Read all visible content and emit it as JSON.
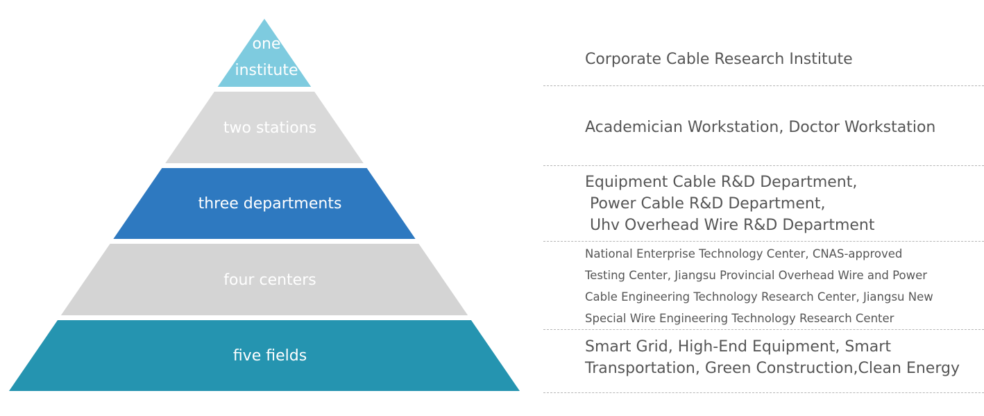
{
  "tiers": [
    {
      "label_lines": [
        "one",
        "institute"
      ],
      "color": "#7ecbdf",
      "description_lines": [
        "Corporate Cable Research Institute"
      ]
    },
    {
      "label_lines": [
        "two stations"
      ],
      "color": "#d9d9d9",
      "description_lines": [
        "Academician Workstation, Doctor Workstation"
      ]
    },
    {
      "label_lines": [
        "three departments"
      ],
      "color": "#2e79c0",
      "description_lines": [
        "Equipment Cable R&D Department,",
        " Power Cable R&D Department,",
        " Uhv Overhead Wire R&D Department"
      ]
    },
    {
      "label_lines": [
        "four centers"
      ],
      "color": "#d4d4d4",
      "description_lines": [
        "National Enterprise Technology Center, CNAS-approved",
        "Testing Center, Jiangsu Provincial Overhead Wire and Power",
        "Cable Engineering Technology Research Center, Jiangsu New",
        "Special Wire Engineering Technology Research Center"
      ]
    },
    {
      "label_lines": [
        "five fields"
      ],
      "color": "#2594b0",
      "description_lines": [
        "Smart Grid, High-End Equipment, Smart",
        "Transportation, Green Construction,Clean Energy"
      ]
    }
  ]
}
